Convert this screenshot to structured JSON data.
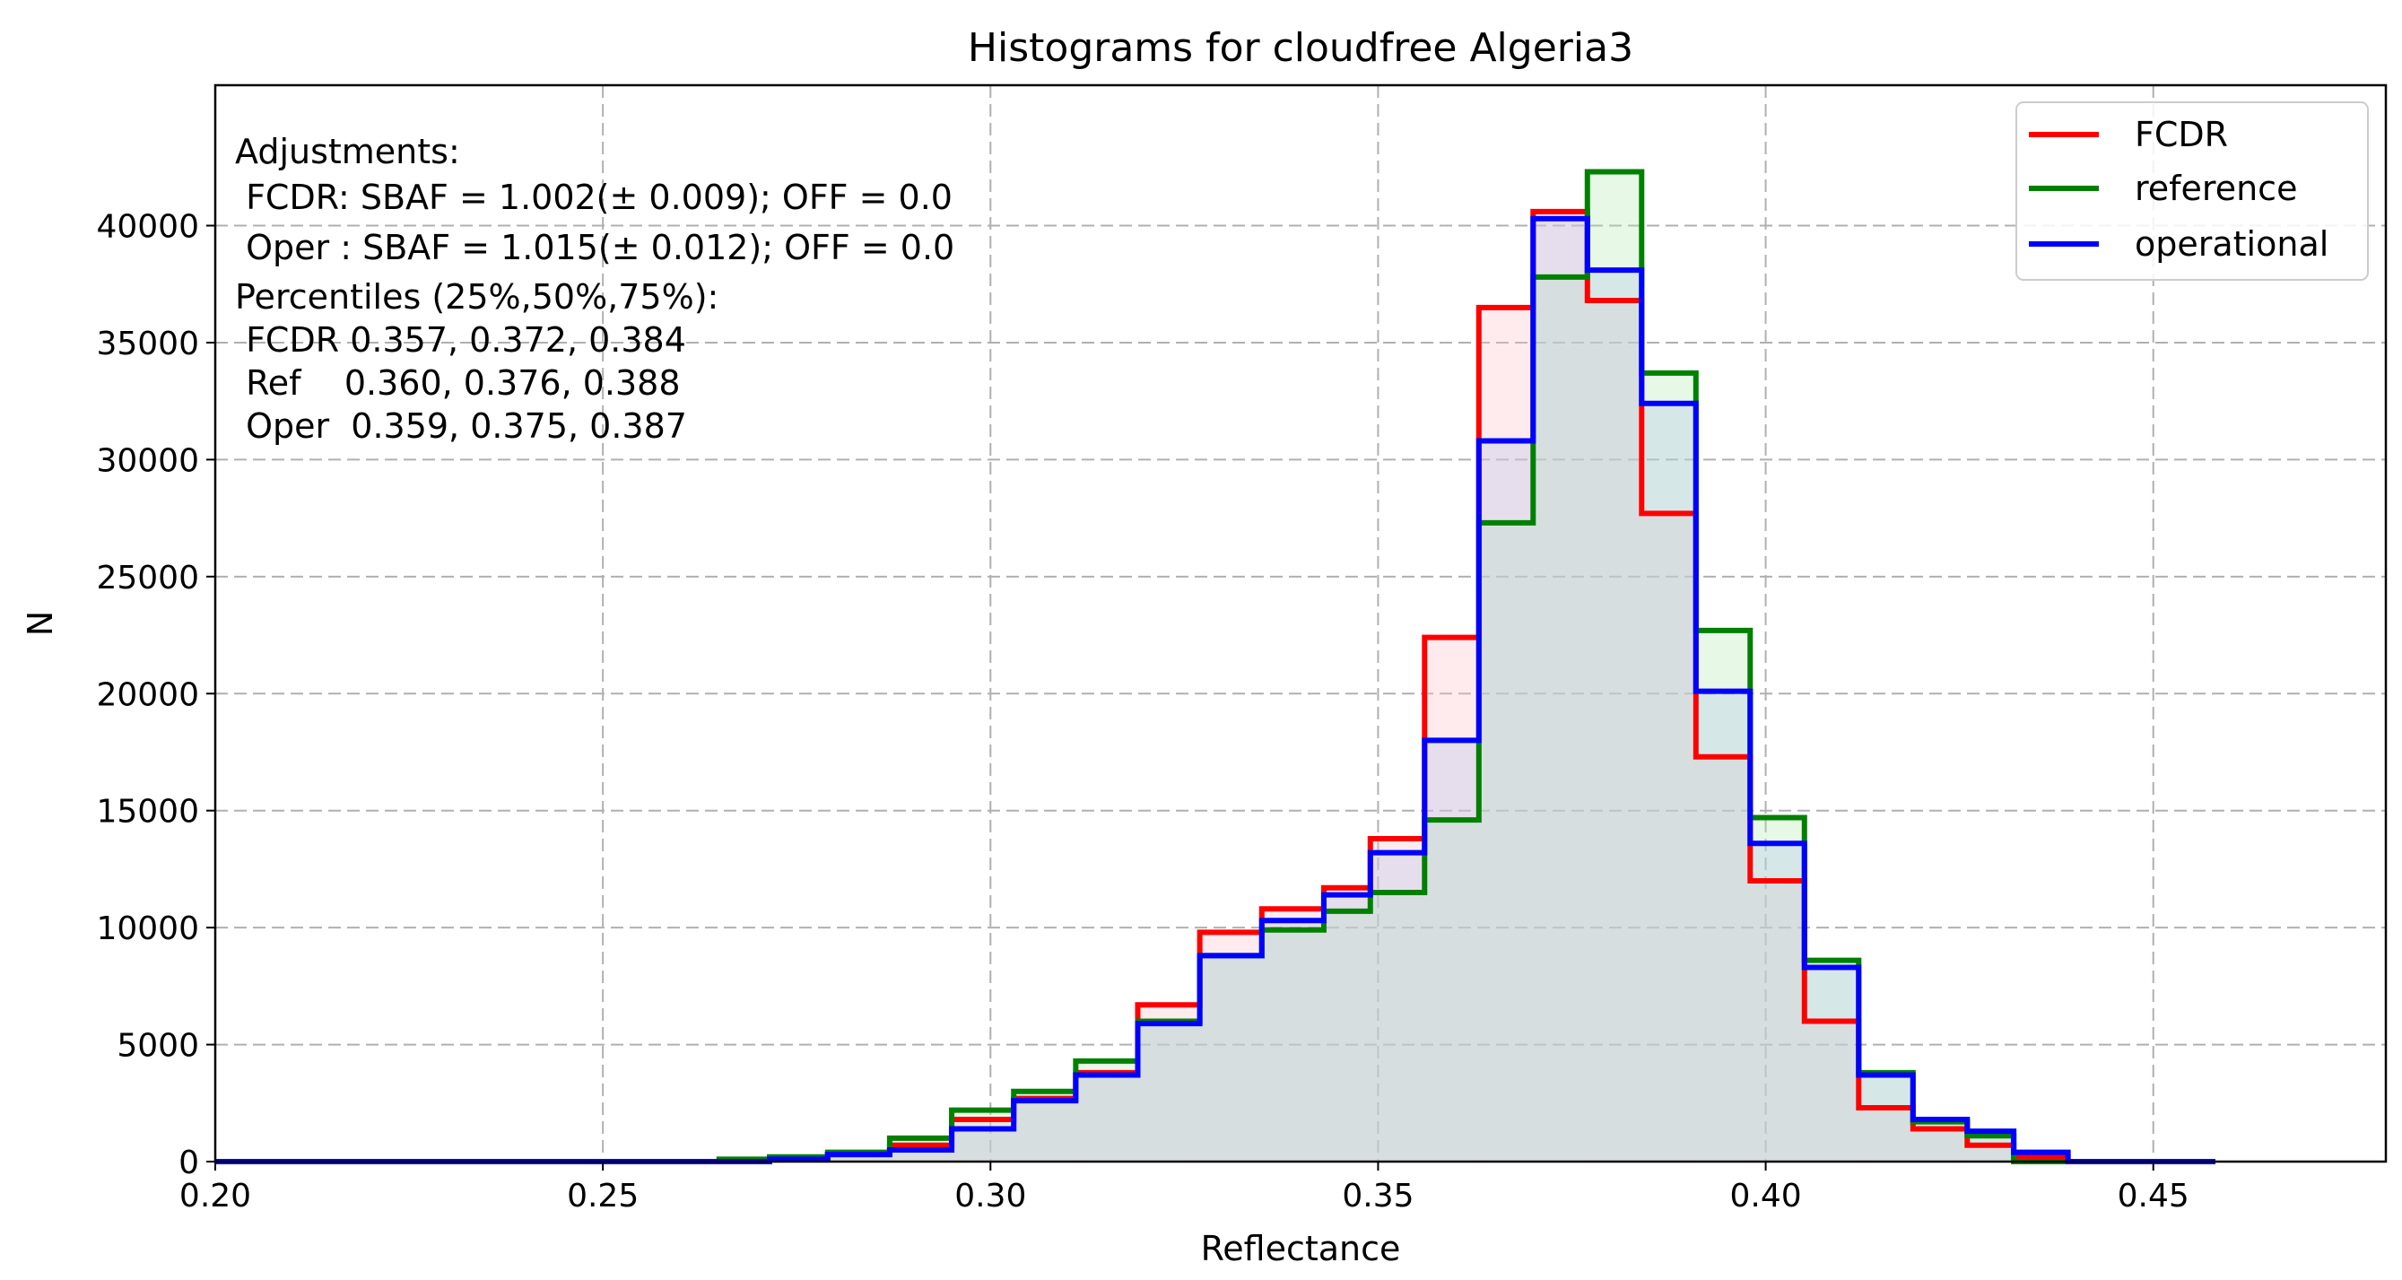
{
  "chart_data": {
    "type": "histogram",
    "title": "Histograms for cloudfree Algeria3",
    "xlabel": "Reflectance",
    "ylabel": "N",
    "xlim": [
      0.2,
      0.48
    ],
    "ylim": [
      0,
      46000
    ],
    "grid": true,
    "legend_placement": "top-right",
    "x_ticks": [
      0.2,
      0.25,
      0.3,
      0.35,
      0.4,
      0.45
    ],
    "x_tick_labels": [
      "0.20",
      "0.25",
      "0.30",
      "0.35",
      "0.40",
      "0.45"
    ],
    "y_ticks": [
      0,
      5000,
      10000,
      15000,
      20000,
      25000,
      30000,
      35000,
      40000
    ],
    "y_tick_labels": [
      "0",
      "5000",
      "10000",
      "15000",
      "20000",
      "25000",
      "30000",
      "35000",
      "40000"
    ],
    "bin_edges": [
      0.2,
      0.2065,
      0.213,
      0.2195,
      0.226,
      0.2325,
      0.239,
      0.2455,
      0.252,
      0.2585,
      0.265,
      0.2715,
      0.279,
      0.287,
      0.295,
      0.303,
      0.311,
      0.319,
      0.327,
      0.335,
      0.343,
      0.349,
      0.356,
      0.363,
      0.37,
      0.377,
      0.384,
      0.391,
      0.398,
      0.405,
      0.412,
      0.419,
      0.426,
      0.432,
      0.439,
      0.446,
      0.453,
      0.458
    ],
    "series": [
      {
        "name": "FCDR",
        "color": "#ff0000",
        "fill": "#ffc0c8",
        "values": [
          0,
          0,
          0,
          0,
          0,
          0,
          0,
          0,
          0,
          0,
          0,
          100,
          300,
          700,
          1800,
          2700,
          3800,
          6700,
          9800,
          10800,
          11700,
          13800,
          22400,
          36500,
          40600,
          36800,
          27700,
          17300,
          12000,
          6000,
          2300,
          1400,
          700,
          200,
          0,
          0,
          0
        ]
      },
      {
        "name": "reference",
        "color": "#008000",
        "fill": "#b5e8b5",
        "values": [
          0,
          0,
          0,
          0,
          0,
          0,
          0,
          0,
          0,
          0,
          100,
          200,
          400,
          1000,
          2200,
          3000,
          4300,
          6000,
          8800,
          9900,
          10700,
          11500,
          14600,
          27300,
          37800,
          42300,
          33700,
          22700,
          14700,
          8600,
          3800,
          1700,
          1100,
          0,
          0,
          0,
          0
        ]
      },
      {
        "name": "operational",
        "color": "#0000ff",
        "fill": "#b0c4e8",
        "values": [
          0,
          0,
          0,
          0,
          0,
          0,
          0,
          0,
          0,
          0,
          0,
          100,
          300,
          500,
          1400,
          2600,
          3700,
          5900,
          8800,
          10300,
          11400,
          13200,
          18000,
          30800,
          40300,
          38100,
          32400,
          20100,
          13600,
          8300,
          3700,
          1800,
          1300,
          400,
          0,
          0,
          0
        ]
      }
    ],
    "annotations": [
      "Adjustments:",
      " FCDR: SBAF = 1.002(± 0.009); OFF = 0.0",
      " Oper : SBAF = 1.015(± 0.012); OFF = 0.0",
      "Percentiles (25%,50%,75%):",
      " FCDR 0.357, 0.372, 0.384",
      " Ref    0.360, 0.376, 0.388",
      " Oper  0.359, 0.375, 0.387"
    ]
  }
}
